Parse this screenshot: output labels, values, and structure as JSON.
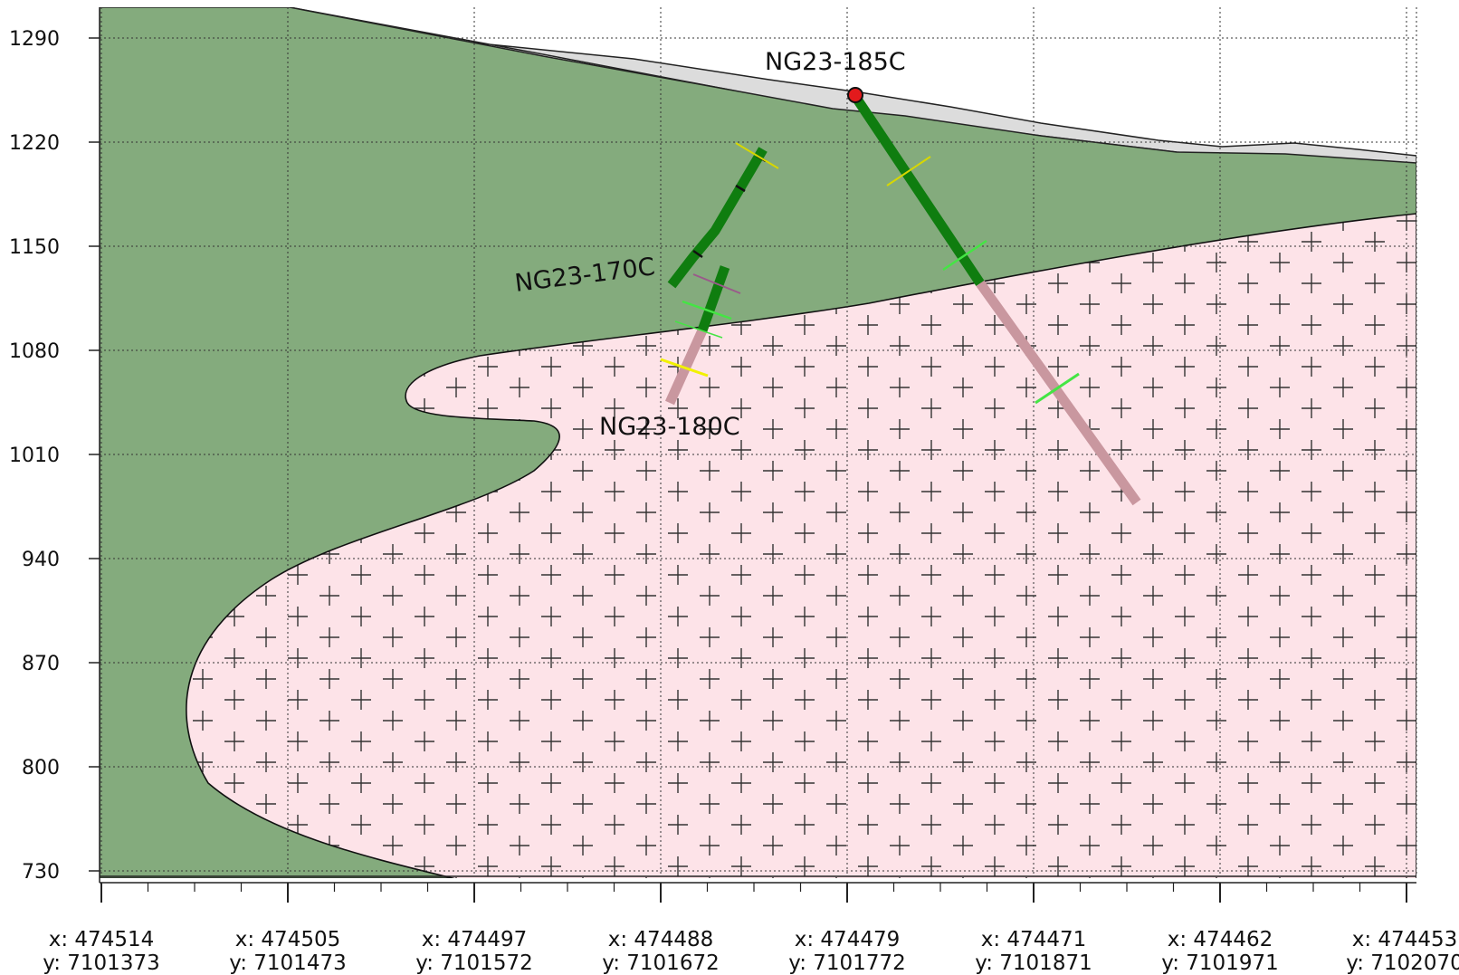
{
  "section": {
    "y_axis": {
      "ticks": [
        "1290",
        "1220",
        "1150",
        "1080",
        "1010",
        "940",
        "870",
        "800",
        "730"
      ],
      "range": [
        720,
        1310
      ],
      "unit_step": 70
    },
    "x_axis": {
      "ticks": [
        {
          "x": "x: 474514",
          "y": "y: 7101373"
        },
        {
          "x": "x: 474505",
          "y": "y: 7101473"
        },
        {
          "x": "x: 474497",
          "y": "y: 7101572"
        },
        {
          "x": "x: 474488",
          "y": "y: 7101672"
        },
        {
          "x": "x: 474479",
          "y": "y: 7101772"
        },
        {
          "x": "x: 474471",
          "y": "y: 7101871"
        },
        {
          "x": "x: 474462",
          "y": "y: 7101971"
        },
        {
          "x": "x: 474453",
          "y": "y: 7102070"
        }
      ]
    },
    "drillholes": [
      {
        "name": "NG23-185C"
      },
      {
        "name": "NG23-170C"
      },
      {
        "name": "NG23-180C"
      }
    ],
    "units": [
      {
        "name": "overburden",
        "color": "#dcdcdc"
      },
      {
        "name": "green-unit",
        "color": "#84ab7d"
      },
      {
        "name": "intrusive-pink",
        "color": "#fde3e8"
      }
    ],
    "colors": {
      "hole_green": "#0f7d0f",
      "hole_pink": "#c9979f",
      "collar": "#e31a1c",
      "tick_yellow": "#f2f200",
      "tick_lime": "#44e544",
      "tick_purple": "#9a5a8a"
    }
  }
}
